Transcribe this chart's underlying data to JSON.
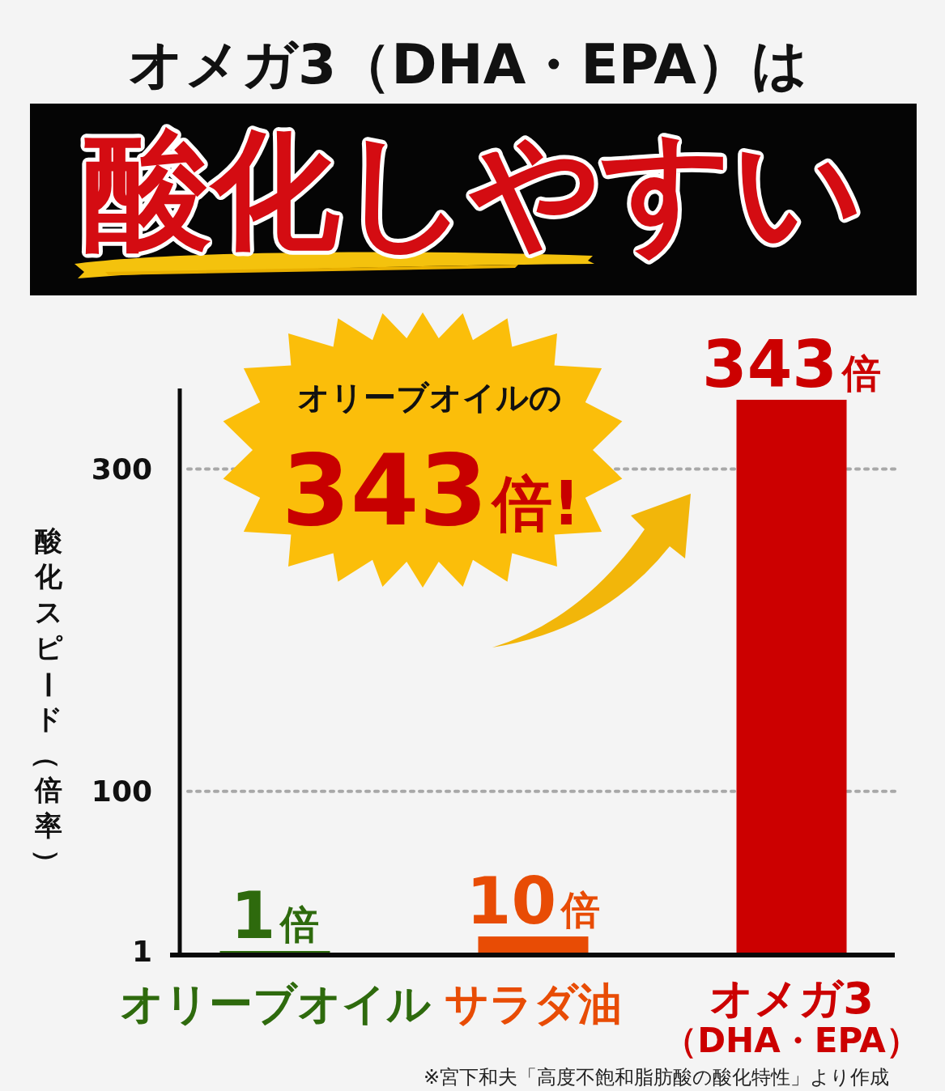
{
  "chart_data": {
    "type": "bar",
    "title": "オメガ3（DHA・EPA）は",
    "subtitle": "酸化しやすい",
    "ylabel": "酸化スピード（倍率）",
    "categories": [
      "オリーブオイル",
      "サラダ油",
      "オメガ3\n（DHA・EPA）"
    ],
    "values": [
      1,
      10,
      343
    ],
    "colors": [
      "#2e6a0d",
      "#e84c05",
      "#cc0000"
    ],
    "value_labels": [
      "1倍",
      "10倍",
      "343倍"
    ],
    "ylim": [
      0,
      350
    ],
    "yticks": [
      1,
      100,
      300
    ],
    "grid": "y",
    "annotations": [
      "オリーブオイルの",
      "343倍!",
      "※宮下和夫「高度不飽和脂肪酸の酸化特性」より作成"
    ]
  }
}
